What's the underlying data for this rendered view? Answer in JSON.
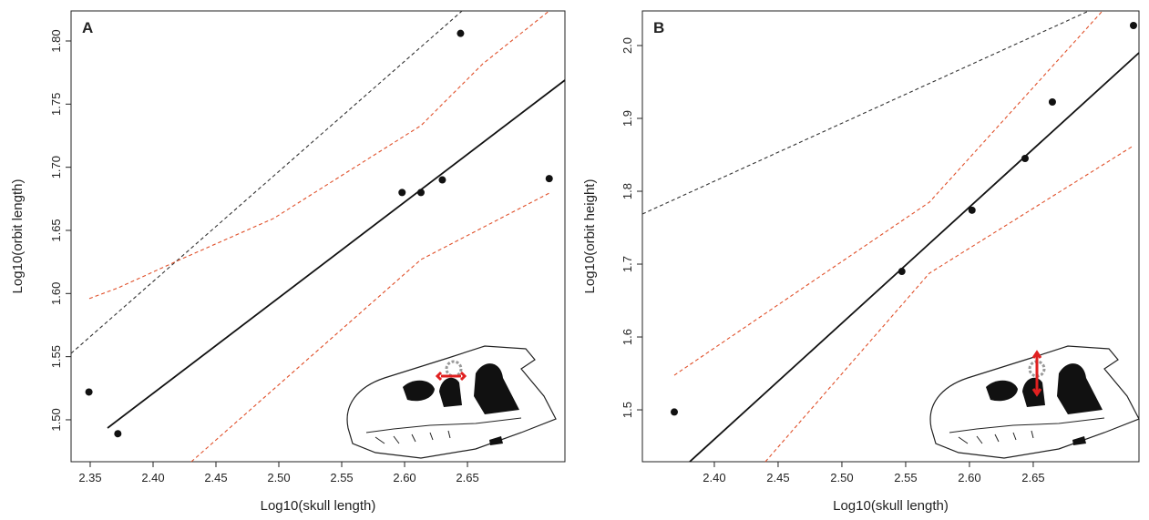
{
  "chart_data": [
    {
      "type": "scatter",
      "panel": "A",
      "x_label": "Log10(skull length)",
      "y_label": "Log10(orbit length)",
      "xlim": [
        2.3348,
        2.7275
      ],
      "ylim": [
        1.4668,
        1.8238
      ],
      "xticks": [
        2.35,
        {
          "value": 2.4,
          "label": "2.40"
        },
        2.45,
        {
          "value": 2.5,
          "label": "2.50"
        },
        2.55,
        {
          "value": 2.6,
          "label": "2.60"
        },
        2.65
      ],
      "yticks": [
        {
          "value": 1.5,
          "label": "1.50"
        },
        1.55,
        {
          "value": 1.6,
          "label": "1.60"
        },
        1.65,
        {
          "value": 1.7,
          "label": "1.70"
        },
        1.75,
        {
          "value": 1.8,
          "label": "1.80"
        }
      ],
      "series": [
        {
          "style": "points",
          "color": "#111111",
          "x": [
            2.349,
            2.372,
            2.598,
            2.613,
            2.63,
            2.6445,
            2.715
          ],
          "values": [
            1.522,
            1.489,
            1.68,
            1.68,
            1.69,
            1.806,
            1.691
          ]
        },
        {
          "style": "solid",
          "color": "#111111",
          "x": [
            2.3638,
            2.7275
          ],
          "values": [
            1.4935,
            1.769
          ]
        },
        {
          "style": "dashed",
          "color": "#333333",
          "x": [
            2.3348,
            2.6457
          ],
          "values": [
            1.5526,
            1.8238
          ]
        },
        {
          "style": "dashed",
          "color": "#e0502a",
          "x": [
            2.3493,
            2.3725,
            2.4232,
            2.4957,
            2.613,
            2.6623,
            2.7152
          ],
          "values": [
            1.596,
            1.6046,
            1.6276,
            1.6594,
            1.733,
            1.782,
            1.824
          ]
        },
        {
          "style": "dashed",
          "color": "#e0502a",
          "x": [
            2.4304,
            2.613,
            2.7152
          ],
          "values": [
            1.4668,
            1.6269,
            1.6796
          ]
        }
      ]
    },
    {
      "type": "scatter",
      "panel": "B",
      "x_label": "Log10(skull length)",
      "y_label": "Log10(orbit height)",
      "xlim": [
        2.3436,
        2.7329
      ],
      "ylim": [
        1.4288,
        2.0475
      ],
      "xticks": [
        {
          "value": 2.4,
          "label": "2.40"
        },
        2.45,
        {
          "value": 2.5,
          "label": "2.50"
        },
        2.55,
        {
          "value": 2.6,
          "label": "2.60"
        },
        2.65
      ],
      "yticks": [
        1.5,
        1.6,
        1.7,
        1.8,
        1.9,
        {
          "value": 2,
          "label": "2.0"
        }
      ],
      "series": [
        {
          "style": "points",
          "color": "#111111",
          "x": [
            2.3686,
            2.547,
            2.602,
            2.6436,
            2.665,
            2.7286
          ],
          "values": [
            1.497,
            1.69,
            1.774,
            1.845,
            1.9225,
            2.0275
          ]
        },
        {
          "style": "solid",
          "color": "#111111",
          "x": [
            2.3807,
            2.7329
          ],
          "values": [
            1.4288,
            1.99
          ]
        },
        {
          "style": "dashed",
          "color": "#333333",
          "x": [
            2.3436,
            2.6936
          ],
          "values": [
            1.7688,
            2.0475
          ]
        },
        {
          "style": "dashed",
          "color": "#e0502a",
          "x": [
            2.3686,
            2.5686,
            2.7043
          ],
          "values": [
            1.5475,
            1.785,
            2.0475
          ]
        },
        {
          "style": "dashed",
          "color": "#e0502a",
          "x": [
            2.44,
            2.5686,
            2.7286
          ],
          "values": [
            1.4288,
            1.6875,
            1.8625
          ]
        }
      ]
    }
  ]
}
